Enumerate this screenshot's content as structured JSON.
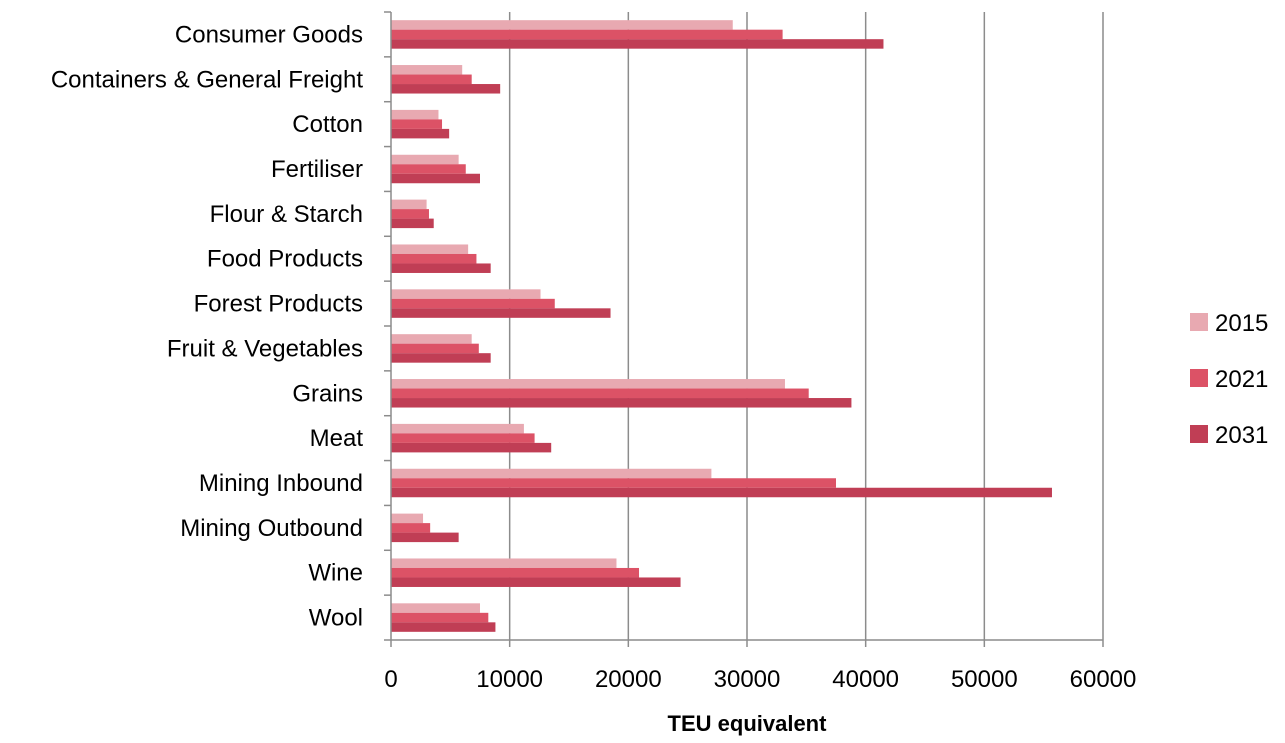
{
  "chart_data": {
    "type": "bar",
    "orientation": "horizontal",
    "categories": [
      "Consumer Goods",
      "Containers & General Freight",
      "Cotton",
      "Fertiliser",
      "Flour & Starch",
      "Food Products",
      "Forest Products",
      "Fruit & Vegetables",
      "Grains",
      "Meat",
      "Mining Inbound",
      "Mining Outbound",
      "Wine",
      "Wool"
    ],
    "series": [
      {
        "name": "2015",
        "color": "#e8a9b1",
        "values": [
          28800,
          6000,
          4000,
          5700,
          3000,
          6500,
          12600,
          6800,
          33200,
          11200,
          27000,
          2700,
          19000,
          7500
        ]
      },
      {
        "name": "2021",
        "color": "#dc5266",
        "values": [
          33000,
          6800,
          4300,
          6300,
          3200,
          7200,
          13800,
          7400,
          35200,
          12100,
          37500,
          3300,
          20900,
          8200
        ]
      },
      {
        "name": "2031",
        "color": "#c03e55",
        "values": [
          41500,
          9200,
          4900,
          7500,
          3600,
          8400,
          18500,
          8400,
          38800,
          13500,
          55700,
          5700,
          24400,
          8800
        ]
      }
    ],
    "xlim": [
      0,
      60000
    ],
    "xticks": [
      0,
      10000,
      20000,
      30000,
      40000,
      50000,
      60000
    ],
    "xlabel": "TEU equivalent",
    "ylabel": "",
    "grid": "vertical",
    "legend_position": "right"
  }
}
